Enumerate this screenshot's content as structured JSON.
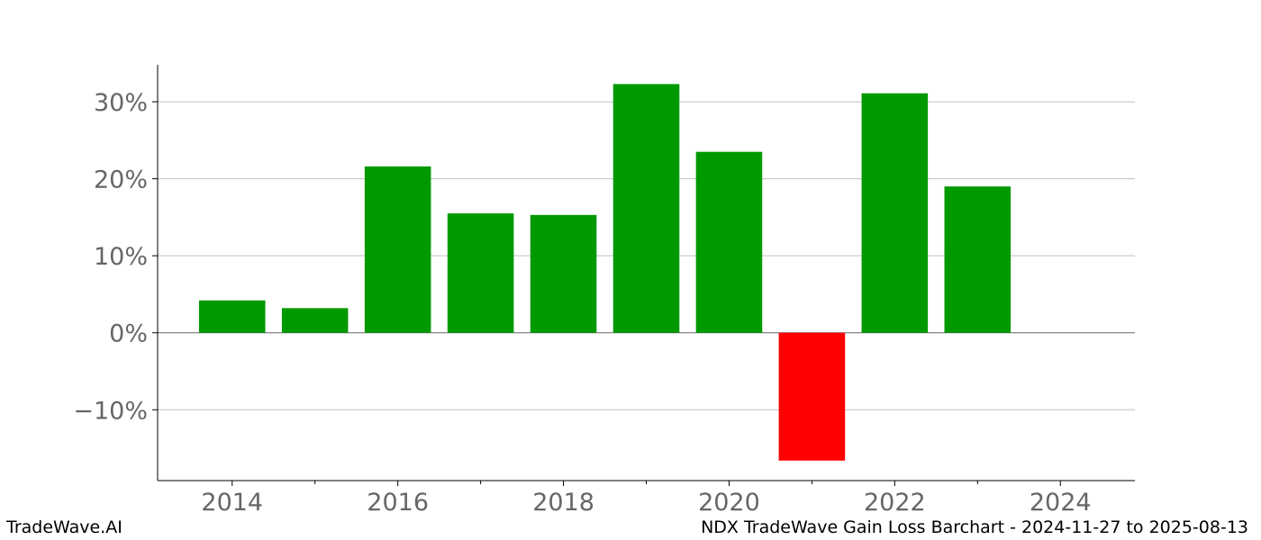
{
  "chart_data": {
    "type": "bar",
    "title": "NDX TradeWave Gain Loss Barchart - 2024-11-27 to 2025-08-13",
    "xlabel": "",
    "ylabel": "",
    "categories": [
      2014,
      2015,
      2016,
      2017,
      2018,
      2019,
      2020,
      2021,
      2022,
      2023
    ],
    "values": [
      4.2,
      3.2,
      21.6,
      15.5,
      15.3,
      32.3,
      23.5,
      -16.6,
      31.1,
      19.0
    ],
    "xlim": [
      2013.1,
      2024.9
    ],
    "ylim": [
      -19.2,
      34.8
    ],
    "yticks": [
      -10,
      0,
      10,
      20,
      30
    ],
    "ytick_labels": [
      "−10%",
      "0%",
      "10%",
      "20%",
      "30%"
    ],
    "xticks": [
      2014,
      2016,
      2018,
      2020,
      2022,
      2024
    ],
    "xtick_labels": [
      "2014",
      "2016",
      "2018",
      "2020",
      "2022",
      "2024"
    ],
    "x_minor_ticks": [
      2015,
      2017,
      2019,
      2021,
      2023
    ],
    "grid": true,
    "colors": {
      "positive": "#009900",
      "negative": "#ff0000",
      "grid": "#c0c0c0",
      "axis": "#000000",
      "zero_line": "#666666",
      "tick_text": "#666666"
    }
  },
  "footer": {
    "brand": "TradeWave.AI",
    "caption": "NDX TradeWave Gain Loss Barchart - 2024-11-27 to 2025-08-13"
  }
}
